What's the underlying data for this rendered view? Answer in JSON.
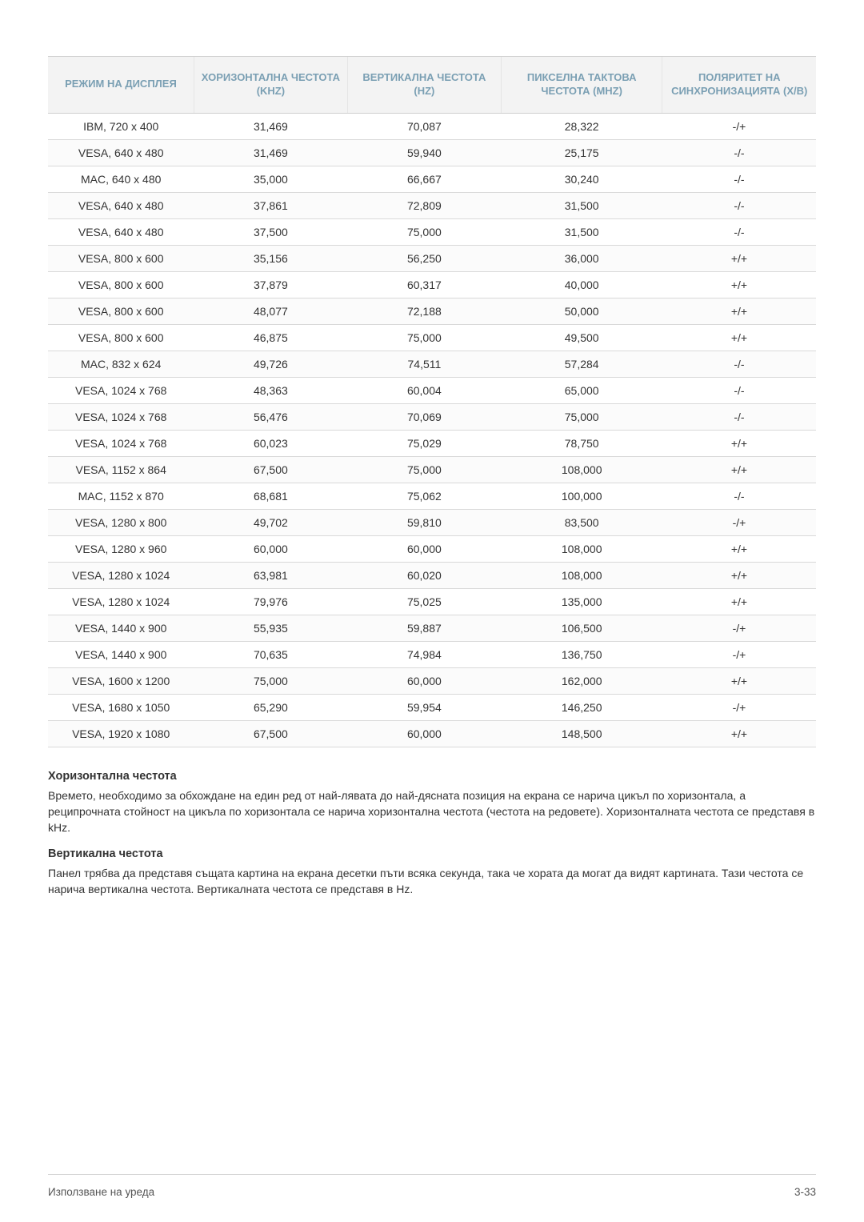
{
  "table": {
    "columns": [
      "РЕЖИМ НА ДИСПЛЕЯ",
      "ХОРИЗОНТАЛНА ЧЕСТОТА (KHZ)",
      "ВЕРТИКАЛНА ЧЕСТОТА (HZ)",
      "ПИКСЕЛНА ТАКТОВА ЧЕСТОТА (MHZ)",
      "ПОЛЯРИТЕТ НА СИНХРОНИЗАЦИЯТА (Х/В)"
    ],
    "col_widths_pct": [
      19,
      20,
      20,
      21,
      20
    ],
    "header_bg": "#f3f3f3",
    "header_text_color": "#7a9fb3",
    "border_color": "#d9d9d9",
    "rows": [
      [
        "IBM, 720 x 400",
        "31,469",
        "70,087",
        "28,322",
        "-/+"
      ],
      [
        "VESA, 640 x 480",
        "31,469",
        "59,940",
        "25,175",
        "-/-"
      ],
      [
        "MAC, 640 x 480",
        "35,000",
        "66,667",
        "30,240",
        "-/-"
      ],
      [
        "VESA, 640 x 480",
        "37,861",
        "72,809",
        "31,500",
        "-/-"
      ],
      [
        "VESA, 640 x 480",
        "37,500",
        "75,000",
        "31,500",
        "-/-"
      ],
      [
        "VESA, 800 x 600",
        "35,156",
        "56,250",
        "36,000",
        "+/+"
      ],
      [
        "VESA, 800 x 600",
        "37,879",
        "60,317",
        "40,000",
        "+/+"
      ],
      [
        "VESA, 800 x 600",
        "48,077",
        "72,188",
        "50,000",
        "+/+"
      ],
      [
        "VESA, 800 x 600",
        "46,875",
        "75,000",
        "49,500",
        "+/+"
      ],
      [
        "MAC, 832 x 624",
        "49,726",
        "74,511",
        "57,284",
        "-/-"
      ],
      [
        "VESA, 1024 x 768",
        "48,363",
        "60,004",
        "65,000",
        "-/-"
      ],
      [
        "VESA, 1024 x 768",
        "56,476",
        "70,069",
        "75,000",
        "-/-"
      ],
      [
        "VESA, 1024 x 768",
        "60,023",
        "75,029",
        "78,750",
        "+/+"
      ],
      [
        "VESA, 1152 x 864",
        "67,500",
        "75,000",
        "108,000",
        "+/+"
      ],
      [
        "MAC, 1152 x 870",
        "68,681",
        "75,062",
        "100,000",
        "-/-"
      ],
      [
        "VESA, 1280 x 800",
        "49,702",
        "59,810",
        "83,500",
        "-/+"
      ],
      [
        "VESA, 1280 x 960",
        "60,000",
        "60,000",
        "108,000",
        "+/+"
      ],
      [
        "VESA, 1280 x 1024",
        "63,981",
        "60,020",
        "108,000",
        "+/+"
      ],
      [
        "VESA, 1280 x 1024",
        "79,976",
        "75,025",
        "135,000",
        "+/+"
      ],
      [
        "VESA, 1440 x 900",
        "55,935",
        "59,887",
        "106,500",
        "-/+"
      ],
      [
        "VESA, 1440 x 900",
        "70,635",
        "74,984",
        "136,750",
        "-/+"
      ],
      [
        "VESA, 1600 x 1200",
        "75,000",
        "60,000",
        "162,000",
        "+/+"
      ],
      [
        "VESA, 1680 x 1050",
        "65,290",
        "59,954",
        "146,250",
        "-/+"
      ],
      [
        "VESA, 1920 x 1080",
        "67,500",
        "60,000",
        "148,500",
        "+/+"
      ]
    ]
  },
  "sections": [
    {
      "title": "Хоризонтална честота",
      "text": "Времето, необходимо за обхождане на един ред от най-лявата до най-дясната позиция на екрана се нарича цикъл по хоризонтала, а реципрочната стойност на цикъла по хоризонтала се нарича хоризонтална честота (честота на редовете). Хоризонталната честота се представя в kHz."
    },
    {
      "title": "Вертикална честота",
      "text": "Панел трябва да представя същата картина на екрана десетки пъти всяка секунда, така че хората да могат да видят картината. Тази честота се нарича вертикална честота. Вертикалната честота се представя в Hz."
    }
  ],
  "footer": {
    "left": "Използване на уреда",
    "right": "3-33"
  }
}
